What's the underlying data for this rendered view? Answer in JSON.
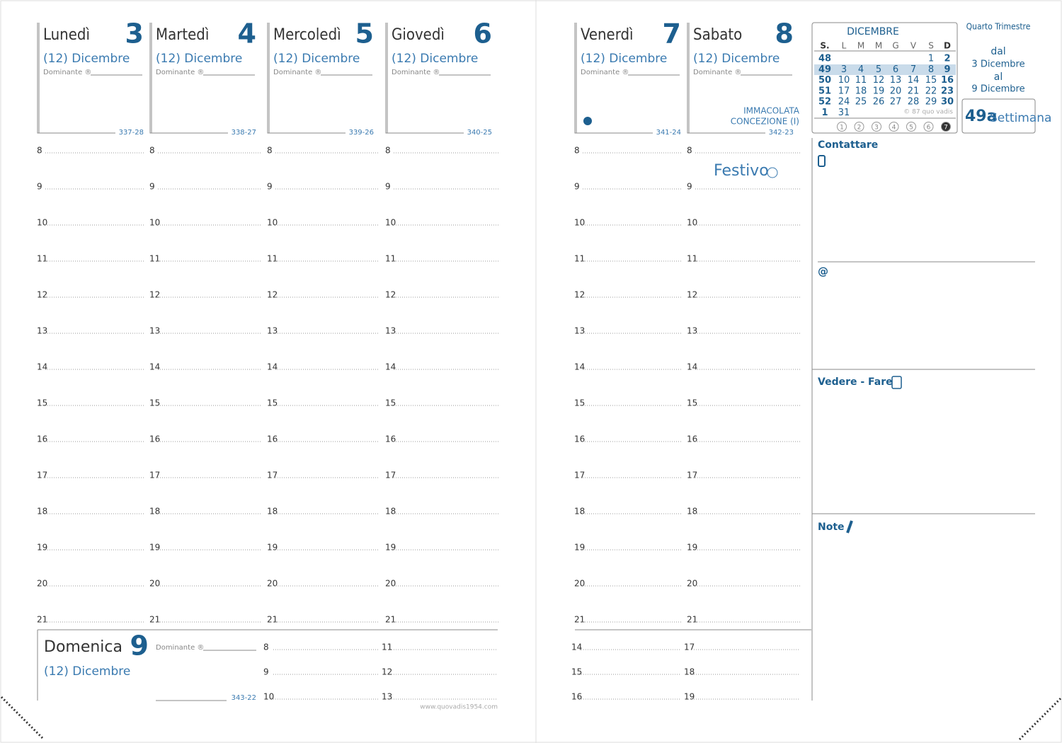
{
  "days": [
    {
      "name": "Lunedì",
      "number": 3,
      "month": "(12) Dicembre",
      "dominante": "Dominante ®",
      "code": "337-28"
    },
    {
      "name": "Martedì",
      "number": 4,
      "month": "(12) Dicembre",
      "dominante": "Dominante ®",
      "code": "338-27"
    },
    {
      "name": "Mercoledì",
      "number": 5,
      "month": "(12) Dicembre",
      "dominante": "Dominante ®",
      "code": "339-26"
    },
    {
      "name": "Giovedì",
      "number": 6,
      "month": "(12) Dicembre",
      "dominante": "Dominante ®",
      "code": "340-25"
    },
    {
      "name": "Venerdì",
      "number": 7,
      "month": "(12) Dicembre",
      "dominante": "Dominante ®",
      "code": "341-24"
    },
    {
      "name": "Sabato",
      "number": 8,
      "month": "(12) Dicembre",
      "dominante": "Dominante ®",
      "code": "342-23",
      "holiday": [
        "IMMACOLATA",
        "CONCEZIONE (I)"
      ],
      "festivo": "Festivo"
    }
  ],
  "hours": [
    8,
    9,
    10,
    11,
    12,
    13,
    14,
    15,
    16,
    17,
    18,
    19,
    20,
    21
  ],
  "sunday": {
    "name": "Domenica",
    "number": 9,
    "month": "(12) Dicembre",
    "dominante": "Dominante ®",
    "code": "343-22",
    "hours": [
      8,
      9,
      10,
      11,
      12,
      13,
      14,
      15,
      16,
      17,
      18,
      19
    ]
  },
  "calendar": {
    "title": "DICEMBRE",
    "header": [
      "S.",
      "L",
      "M",
      "M",
      "G",
      "V",
      "S",
      "D"
    ],
    "rows": [
      [
        48,
        null,
        null,
        null,
        null,
        null,
        1,
        2
      ],
      [
        49,
        3,
        4,
        5,
        6,
        7,
        8,
        9
      ],
      [
        50,
        10,
        11,
        12,
        13,
        14,
        15,
        16
      ],
      [
        51,
        17,
        18,
        19,
        20,
        21,
        22,
        23
      ],
      [
        52,
        24,
        25,
        26,
        27,
        28,
        29,
        30
      ],
      [
        1,
        31,
        null,
        null,
        null,
        null,
        null,
        null
      ]
    ],
    "copyright": "© 87 quo vadis",
    "weekdays": [
      1,
      2,
      3,
      4,
      5,
      6,
      7
    ]
  },
  "week": {
    "quarter": "Quarto Trimestre",
    "from": "dal",
    "start": "3 Dicembre",
    "to": "al",
    "end": "9 Dicembre",
    "number": "49a",
    "label": "Settimana"
  },
  "sections": {
    "contact": "Contattare",
    "email": "@",
    "todo": "Vedere - Fare",
    "notes": "Note"
  },
  "footer": "www.quovadis1954.com"
}
